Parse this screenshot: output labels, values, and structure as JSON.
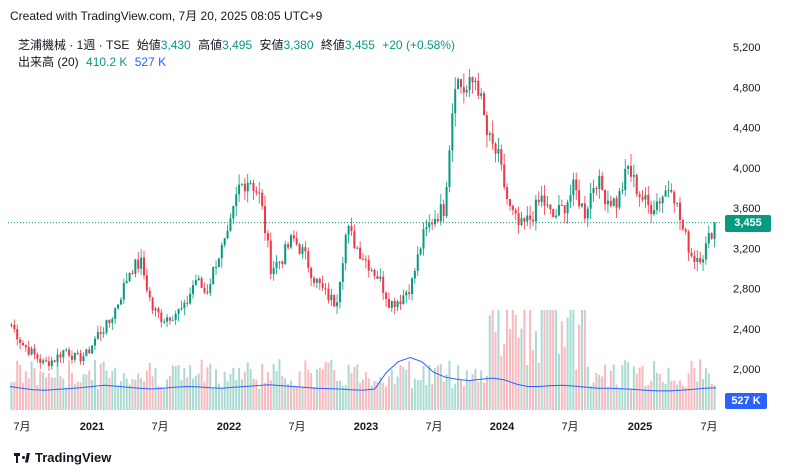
{
  "header": {
    "credit": "Created with TradingView.com, 7月 20, 2025 08:05 UTC+9"
  },
  "legend": {
    "symbol": "芝浦機械 · 1週 · TSE",
    "open_label": "始値",
    "open": "3,430",
    "high_label": "高値",
    "high": "3,495",
    "low_label": "安値",
    "low": "3,380",
    "close_label": "終値",
    "close": "3,455",
    "change": "+20 (+0.58%)",
    "volume_label": "出来高 (20)",
    "volume_value": "410.2 K",
    "volume_ma": "527 K"
  },
  "price_tag": "3,455",
  "volume_tag": "527 K",
  "footer": {
    "brand": "TradingView"
  },
  "colors": {
    "up": "#089981",
    "down": "#f23645",
    "ma": "#2962ff"
  },
  "chart_data": {
    "type": "candlestick",
    "interval": "1 week",
    "y_ticks": [
      "5,200",
      "4,800",
      "4,400",
      "4,000",
      "3,600",
      "3,200",
      "2,800",
      "2,400",
      "2,000"
    ],
    "y_values": [
      5200,
      4800,
      4400,
      4000,
      3600,
      3200,
      2800,
      2400,
      2000
    ],
    "x_ticks": [
      {
        "label": "7月",
        "bold": false
      },
      {
        "label": "2021",
        "bold": true
      },
      {
        "label": "7月",
        "bold": false
      },
      {
        "label": "2022",
        "bold": true
      },
      {
        "label": "7月",
        "bold": false
      },
      {
        "label": "2023",
        "bold": true
      },
      {
        "label": "7月",
        "bold": false
      },
      {
        "label": "2024",
        "bold": true
      },
      {
        "label": "7月",
        "bold": false
      },
      {
        "label": "2025",
        "bold": true
      },
      {
        "label": "7月",
        "bold": false
      }
    ],
    "ylim": [
      1600,
      5300
    ],
    "last_close": 3455,
    "close_path": [
      2440,
      2250,
      2150,
      2050,
      2100,
      2200,
      2100,
      2150,
      2350,
      2450,
      2700,
      3000,
      3050,
      2600,
      2500,
      2550,
      2600,
      2900,
      2750,
      3100,
      3300,
      3800,
      3900,
      3700,
      3000,
      3100,
      3300,
      3150,
      2900,
      2750,
      2650,
      3400,
      3200,
      3050,
      2900,
      2650,
      2700,
      2850,
      3300,
      3500,
      3600,
      4900,
      4750,
      4900,
      4300,
      4100,
      3600,
      3400,
      3500,
      3700,
      3500,
      3600,
      3800,
      3550,
      3900,
      3700,
      3650,
      4000,
      3750,
      3600,
      3700,
      3850,
      3400,
      3100,
      3150,
      3455
    ],
    "volume_ma_path": [
      560,
      520,
      480,
      470,
      490,
      510,
      530,
      560,
      590,
      570,
      540,
      520,
      500,
      520,
      540,
      560,
      550,
      530,
      520,
      540,
      560,
      580,
      600,
      580,
      560,
      540,
      520,
      510,
      500,
      480,
      470,
      500,
      900,
      1150,
      1250,
      1150,
      900,
      780,
      730,
      700,
      730,
      760,
      720,
      620,
      560,
      560,
      580,
      590,
      570,
      540,
      520,
      520,
      505,
      490,
      470,
      455,
      455,
      470,
      490,
      520,
      527
    ]
  }
}
